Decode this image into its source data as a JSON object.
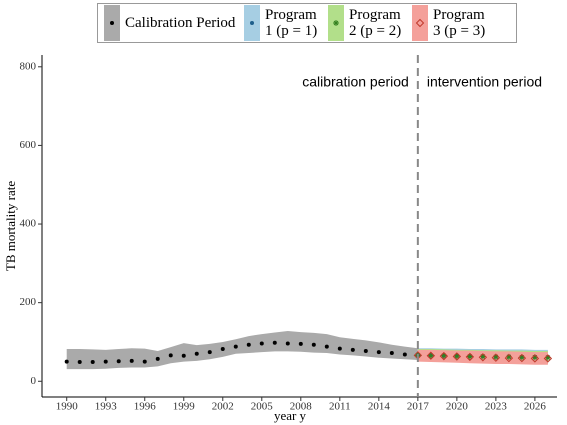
{
  "chart_data": {
    "type": "band-line",
    "xlabel": "year y",
    "ylabel": "TB mortality rate",
    "xlim": [
      1988.1,
      2027.7
    ],
    "ylim": [
      -40,
      830
    ],
    "xticks": [
      1990,
      1993,
      1996,
      1999,
      2002,
      2005,
      2008,
      2011,
      2014,
      2017,
      2020,
      2023,
      2026
    ],
    "yticks": [
      0,
      200,
      400,
      600,
      800
    ],
    "vline": 2017,
    "annotations": [
      "calibration period",
      "intervention period"
    ],
    "series": [
      {
        "name": "Calibration Period",
        "color": "#aaaaaa",
        "marker": "dot",
        "marker_color": "#000000",
        "x": [
          1990,
          1991,
          1992,
          1993,
          1994,
          1995,
          1996,
          1997,
          1998,
          1999,
          2000,
          2001,
          2002,
          2003,
          2004,
          2005,
          2006,
          2007,
          2008,
          2009,
          2010,
          2011,
          2012,
          2013,
          2014,
          2015,
          2016,
          2017
        ],
        "values": [
          50,
          49,
          49,
          50,
          51,
          52,
          50,
          57,
          66,
          65,
          70,
          74,
          82,
          88,
          93,
          96,
          98,
          96,
          95,
          93,
          88,
          83,
          80,
          77,
          74,
          72,
          68,
          66
        ],
        "lower": [
          31,
          31,
          31,
          32,
          34,
          35,
          35,
          38,
          46,
          50,
          52,
          56,
          62,
          70,
          72,
          74,
          76,
          76,
          75,
          73,
          72,
          68,
          66,
          63,
          60,
          58,
          56,
          54
        ],
        "upper": [
          82,
          82,
          81,
          80,
          82,
          84,
          83,
          77,
          87,
          97,
          92,
          95,
          100,
          107,
          115,
          120,
          124,
          128,
          125,
          123,
          120,
          112,
          108,
          104,
          99,
          93,
          88,
          84
        ]
      },
      {
        "name": "Program 1 (p = 1)",
        "color": "#a6cee3",
        "marker": "dot",
        "marker_color": "#1f5f8b",
        "x": [
          2017,
          2018,
          2019,
          2020,
          2021,
          2022,
          2023,
          2024,
          2025,
          2026,
          2027
        ],
        "values": [
          66,
          66,
          65,
          65,
          64,
          64,
          63,
          63,
          62,
          62,
          62
        ],
        "lower": [
          52,
          51,
          51,
          50,
          49,
          48,
          48,
          47,
          46,
          46,
          45
        ],
        "upper": [
          84,
          84,
          83,
          83,
          82,
          82,
          81,
          81,
          81,
          80,
          80
        ]
      },
      {
        "name": "Program 2 (p = 2)",
        "color": "#b2df8a",
        "marker": "star",
        "marker_color": "#33801f",
        "x": [
          2017,
          2018,
          2019,
          2020,
          2021,
          2022,
          2023,
          2024,
          2025,
          2026,
          2027
        ],
        "values": [
          66,
          65,
          65,
          64,
          63,
          63,
          62,
          62,
          61,
          61,
          60
        ],
        "lower": [
          51,
          50,
          50,
          49,
          48,
          47,
          47,
          46,
          45,
          45,
          44
        ],
        "upper": [
          82,
          82,
          81,
          80,
          80,
          79,
          79,
          78,
          78,
          77,
          77
        ]
      },
      {
        "name": "Program 3 (p = 3)",
        "color": "#f4a09a",
        "marker": "diamond",
        "marker_color": "#c0392b",
        "x": [
          2017,
          2018,
          2019,
          2020,
          2021,
          2022,
          2023,
          2024,
          2025,
          2026,
          2027
        ],
        "values": [
          66,
          65,
          64,
          63,
          62,
          61,
          60,
          59,
          59,
          58,
          58
        ],
        "lower": [
          50,
          49,
          48,
          47,
          46,
          45,
          44,
          44,
          43,
          42,
          42
        ],
        "upper": [
          80,
          80,
          79,
          78,
          78,
          77,
          76,
          76,
          75,
          74,
          74
        ]
      }
    ]
  }
}
